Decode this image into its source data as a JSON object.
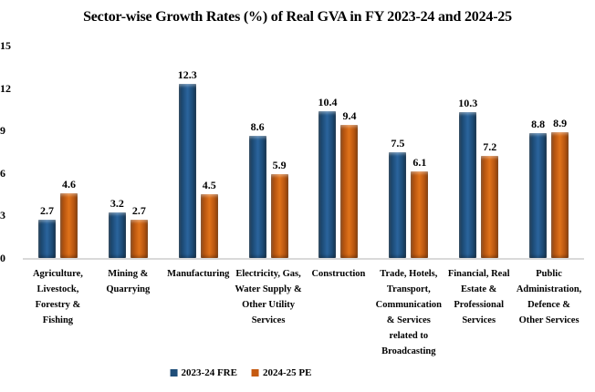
{
  "chart_data": {
    "type": "bar",
    "title": "Sector-wise Growth Rates (%) of Real GVA in FY 2023-24 and 2024-25",
    "categories": [
      "Agriculture, Livestock, Forestry & Fishing",
      "Mining & Quarrying",
      "Manufacturing",
      "Electricity, Gas, Water Supply & Other Utility Services",
      "Construction",
      "Trade, Hotels, Transport, Communication & Services related to Broadcasting",
      "Financial, Real Estate & Professional Services",
      "Public Administration, Defence & Other Services"
    ],
    "category_label_lines": [
      [
        "Agriculture,",
        "Livestock,",
        "Forestry &",
        "Fishing"
      ],
      [
        "Mining &",
        "Quarrying"
      ],
      [
        "Manufacturing"
      ],
      [
        "Electricity, Gas,",
        "Water Supply &",
        "Other Utility",
        "Services"
      ],
      [
        "Construction"
      ],
      [
        "Trade, Hotels,",
        "Transport,",
        "Communication",
        "& Services",
        "related to",
        "Broadcasting"
      ],
      [
        "Financial, Real",
        "Estate &",
        "Professional",
        "Services"
      ],
      [
        "Public",
        "Administration,",
        "Defence &",
        "Other Services"
      ]
    ],
    "series": [
      {
        "name": "2023-24 FRE",
        "color": "#1F4E79",
        "values": [
          2.7,
          3.2,
          12.3,
          8.6,
          10.4,
          7.5,
          10.3,
          8.8
        ]
      },
      {
        "name": "2024-25 PE",
        "color": "#C55A11",
        "values": [
          4.6,
          2.7,
          4.5,
          5.9,
          9.4,
          6.1,
          7.2,
          8.9
        ]
      }
    ],
    "xlabel": "",
    "ylabel": "",
    "ylim": [
      0,
      15
    ],
    "yticks": [
      0,
      3,
      6,
      9,
      12,
      15
    ],
    "grid": false,
    "data_labels": true,
    "legend_position": "bottom",
    "axis_line_color": "#D9D9D9",
    "value_decimals": 1
  }
}
